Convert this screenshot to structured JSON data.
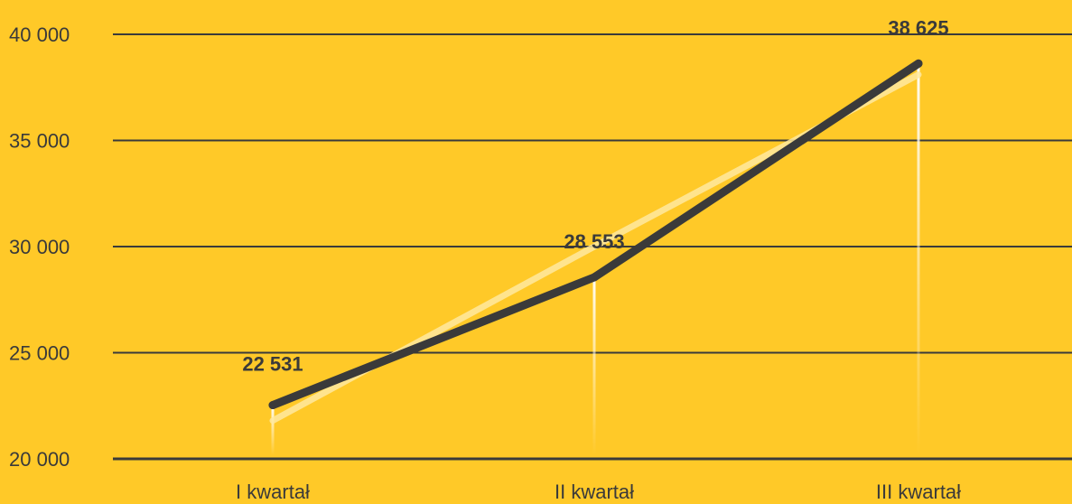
{
  "chart_data": {
    "type": "line",
    "categories": [
      "I kwartał",
      "II kwartał",
      "III kwartał"
    ],
    "series": [
      {
        "values": [
          22531,
          28553,
          38625
        ],
        "data_labels": [
          "22 531",
          "28 553",
          "38 625"
        ],
        "color": "#3A3A3A"
      }
    ],
    "trendline": {
      "values": [
        21800,
        30000,
        38100
      ],
      "color": "#FFE9A0"
    },
    "ylim": [
      20000,
      40000
    ],
    "yticks": [
      20000,
      25000,
      30000,
      35000,
      40000
    ],
    "ytick_labels": [
      "20 000",
      "25 000",
      "30 000",
      "35 000",
      "40 000"
    ],
    "grid": true,
    "title": "",
    "xlabel": "",
    "ylabel": "",
    "colors": {
      "background": "#FFC928",
      "gridline": "#3A3A3A",
      "text": "#3A3A3A",
      "drop_line": "#FFFFFF"
    }
  }
}
